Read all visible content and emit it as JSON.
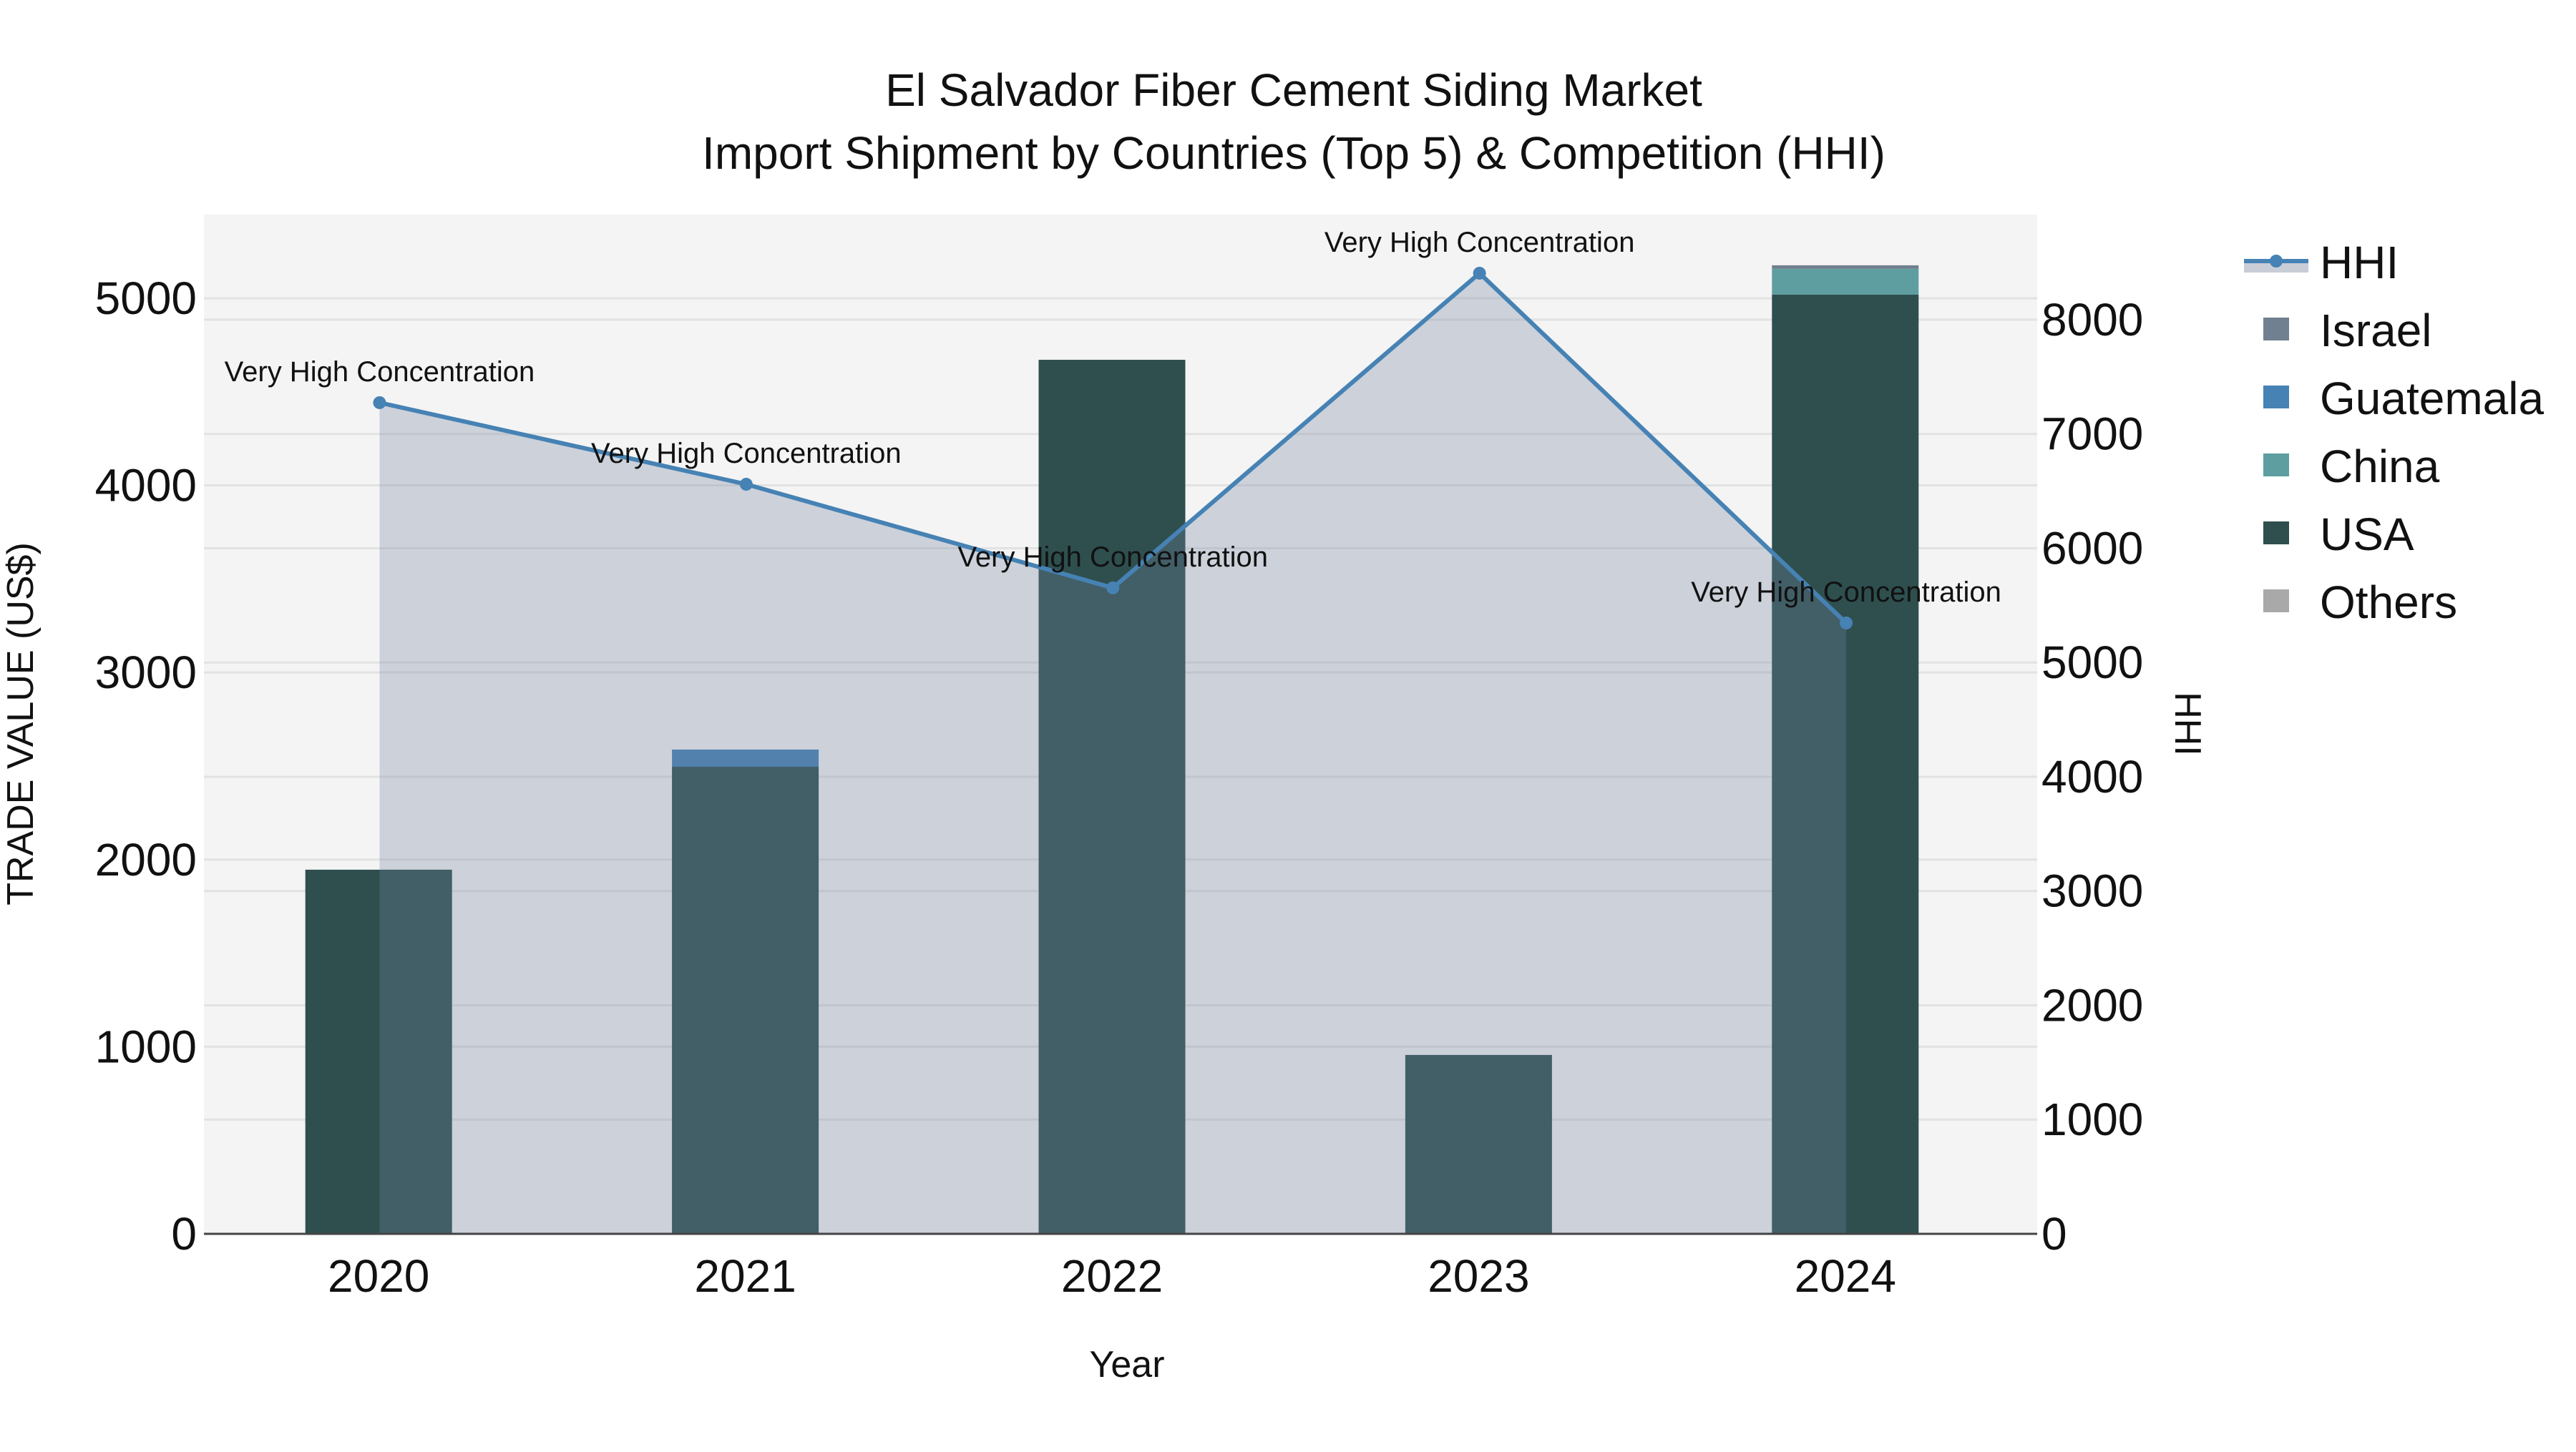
{
  "chart_data": {
    "type": "bar",
    "subtype": "stacked bar with secondary-axis line/area",
    "title": "El Salvador Fiber Cement Siding Market",
    "subtitle": "Import Shipment by Countries (Top 5) & Competition (HHI)",
    "xlabel": "Year",
    "ylabel": "TRADE VALUE (US$)",
    "y2label": "HHI",
    "categories": [
      "2020",
      "2021",
      "2022",
      "2023",
      "2024"
    ],
    "ylim": [
      0,
      5447
    ],
    "y_ticks": [
      0,
      1000,
      2000,
      3000,
      4000,
      5000
    ],
    "y2lim": [
      0,
      8920
    ],
    "y2_ticks": [
      0,
      1000,
      2000,
      3000,
      4000,
      5000,
      6000,
      7000,
      8000
    ],
    "grid": true,
    "legend_position": "right",
    "series": [
      {
        "name": "USA",
        "type": "bar",
        "color": "#2F4F4F",
        "values": [
          1946,
          2496,
          4671,
          956,
          5019
        ]
      },
      {
        "name": "China",
        "type": "bar",
        "color": "#5F9EA0",
        "values": [
          0,
          0,
          0,
          0,
          138
        ]
      },
      {
        "name": "Guatemala",
        "type": "bar",
        "color": "#4682B4",
        "values": [
          0,
          92,
          0,
          0,
          0
        ]
      },
      {
        "name": "Israel",
        "type": "bar",
        "color": "#708090",
        "values": [
          0,
          0,
          0,
          0,
          19
        ]
      },
      {
        "name": "Others",
        "type": "bar",
        "color": "#A9A9A9",
        "values": [
          0,
          0,
          0,
          0,
          0
        ]
      },
      {
        "name": "HHI",
        "type": "line",
        "axis": "y2",
        "color": "#4682B4",
        "fill": "rgba(112,128,160,0.3)",
        "values": [
          7274,
          6560,
          5653,
          8407,
          5346
        ]
      }
    ],
    "annotations": [
      {
        "x": "2020",
        "text": "Very High Concentration"
      },
      {
        "x": "2021",
        "text": "Very High Concentration"
      },
      {
        "x": "2022",
        "text": "Very High Concentration"
      },
      {
        "x": "2023",
        "text": "Very High Concentration"
      },
      {
        "x": "2024",
        "text": "Very High Concentration"
      }
    ]
  },
  "legend": {
    "items": [
      {
        "label": "HHI",
        "kind": "line",
        "color": "#4682B4"
      },
      {
        "label": "Israel",
        "kind": "box",
        "color": "#708090"
      },
      {
        "label": "Guatemala",
        "kind": "box",
        "color": "#4682B4"
      },
      {
        "label": "China",
        "kind": "box",
        "color": "#5F9EA0"
      },
      {
        "label": "USA",
        "kind": "box",
        "color": "#2F4F4F"
      },
      {
        "label": "Others",
        "kind": "box",
        "color": "#A9A9A9"
      }
    ]
  },
  "colors": {
    "plot_bg": "#F4F4F4",
    "grid": "#E2E2E2",
    "axis_line": "#444444",
    "hhi_fill": "#C8CDD6"
  }
}
